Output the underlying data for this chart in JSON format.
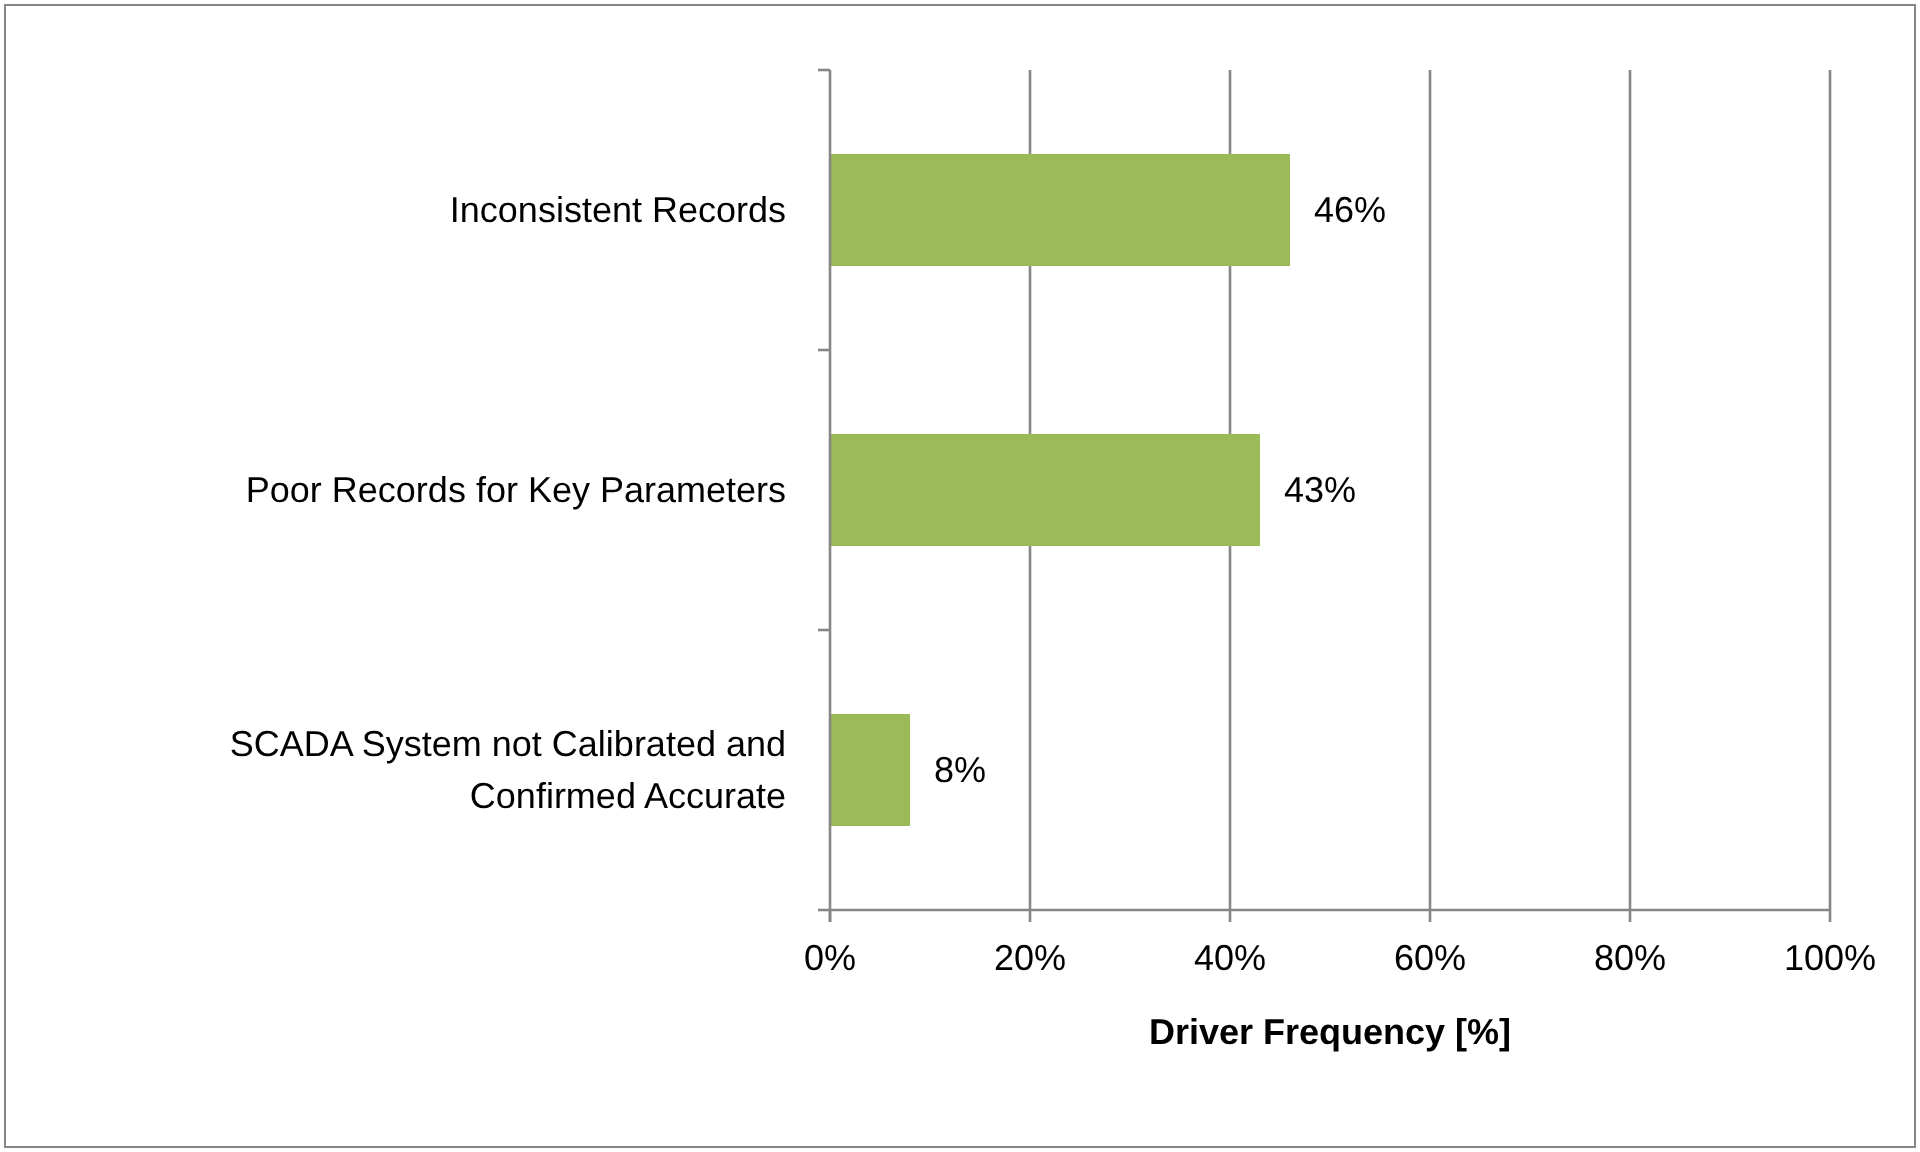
{
  "chart_data": {
    "type": "bar",
    "orientation": "horizontal",
    "xlabel": "Driver Frequency [%]",
    "categories": [
      "Inconsistent Records",
      "Poor Records for Key Parameters",
      "SCADA System not Calibrated and Confirmed Accurate"
    ],
    "values": [
      46,
      43,
      8
    ],
    "color": "#9bbb59",
    "value_labels": [
      "46%",
      "43%",
      "8%"
    ],
    "xlim": [
      0,
      100
    ],
    "xticks": [
      {
        "value": 0,
        "label": "0%"
      },
      {
        "value": 20,
        "label": "20%"
      },
      {
        "value": 40,
        "label": "40%"
      },
      {
        "value": 60,
        "label": "60%"
      },
      {
        "value": 80,
        "label": "80%"
      },
      {
        "value": 100,
        "label": "100%"
      }
    ],
    "grid": "x"
  }
}
